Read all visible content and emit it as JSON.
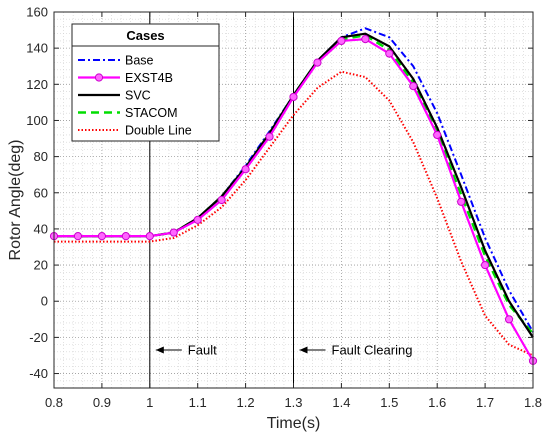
{
  "chart_data": {
    "type": "line",
    "xlabel": "Time(s)",
    "ylabel": "Rotor Angle(deg)",
    "xlim": [
      0.8,
      1.8
    ],
    "ylim": [
      -48,
      160
    ],
    "xticks": [
      0.8,
      0.9,
      1,
      1.1,
      1.2,
      1.3,
      1.4,
      1.5,
      1.6,
      1.7,
      1.8
    ],
    "xtick_labels": [
      "0.8",
      "0.9",
      "1",
      "1.1",
      "1.2",
      "1.3",
      "1.4",
      "1.5",
      "1.6",
      "1.7",
      "1.8"
    ],
    "yticks": [
      -40,
      -20,
      0,
      20,
      40,
      60,
      80,
      100,
      120,
      140,
      160
    ],
    "ytick_labels": [
      "-40",
      "-20",
      "0",
      "20",
      "40",
      "60",
      "80",
      "100",
      "120",
      "140",
      "160"
    ],
    "grid": "major and minor dotted",
    "legend": {
      "title": "Cases",
      "position": "top-left"
    },
    "series": [
      {
        "name": "Base",
        "color": "#0000ff",
        "style": "dash-dot",
        "marker": "none",
        "x": [
          0.8,
          0.9,
          1.0,
          1.05,
          1.1,
          1.15,
          1.2,
          1.25,
          1.3,
          1.35,
          1.4,
          1.45,
          1.5,
          1.55,
          1.6,
          1.65,
          1.7,
          1.75,
          1.8
        ],
        "y": [
          36,
          36,
          36,
          38,
          46,
          58,
          75,
          94,
          114,
          133,
          146,
          151,
          146,
          130,
          104,
          70,
          35,
          6,
          -17
        ]
      },
      {
        "name": "EXST4B",
        "color": "#ff00ff",
        "style": "solid",
        "marker": "circle",
        "x": [
          0.8,
          0.85,
          0.9,
          0.95,
          1.0,
          1.05,
          1.1,
          1.15,
          1.2,
          1.25,
          1.3,
          1.35,
          1.4,
          1.45,
          1.5,
          1.55,
          1.6,
          1.65,
          1.7,
          1.75,
          1.8
        ],
        "y": [
          36,
          36,
          36,
          36,
          36,
          38,
          45,
          56,
          73,
          91,
          113,
          132,
          144,
          145,
          137,
          119,
          92,
          55,
          20,
          -10,
          -33
        ]
      },
      {
        "name": "SVC",
        "color": "#000000",
        "style": "solid",
        "marker": "none",
        "x": [
          0.8,
          0.9,
          1.0,
          1.05,
          1.1,
          1.15,
          1.2,
          1.25,
          1.3,
          1.35,
          1.4,
          1.45,
          1.5,
          1.55,
          1.6,
          1.65,
          1.7,
          1.75,
          1.8
        ],
        "y": [
          36,
          36,
          36,
          38,
          46,
          58,
          74,
          93,
          114,
          133,
          146,
          148,
          141,
          123,
          96,
          63,
          28,
          0,
          -20
        ]
      },
      {
        "name": "STACOM",
        "color": "#00dd00",
        "style": "dashed",
        "marker": "none",
        "x": [
          0.8,
          0.9,
          1.0,
          1.05,
          1.1,
          1.15,
          1.2,
          1.25,
          1.3,
          1.35,
          1.4,
          1.45,
          1.5,
          1.55,
          1.6,
          1.65,
          1.7,
          1.75,
          1.8
        ],
        "y": [
          36,
          36,
          36,
          38,
          46,
          58,
          74,
          93,
          114,
          133,
          145,
          147,
          139,
          121,
          93,
          59,
          25,
          -2,
          -18
        ]
      },
      {
        "name": "Double Line",
        "color": "#ff0000",
        "style": "dotted",
        "marker": "none",
        "x": [
          0.8,
          0.9,
          1.0,
          1.05,
          1.1,
          1.15,
          1.2,
          1.25,
          1.3,
          1.35,
          1.4,
          1.45,
          1.5,
          1.55,
          1.6,
          1.65,
          1.7,
          1.75,
          1.8
        ],
        "y": [
          33,
          33,
          33,
          35,
          42,
          52,
          67,
          85,
          103,
          118,
          127,
          124,
          111,
          88,
          57,
          22,
          -8,
          -24,
          -30
        ]
      }
    ],
    "vlines": [
      1.0,
      1.3
    ],
    "annotations": [
      {
        "text": "Fault",
        "x": 1.0,
        "y": -27
      },
      {
        "text": "Fault Clearing",
        "x": 1.3,
        "y": -27
      }
    ]
  }
}
